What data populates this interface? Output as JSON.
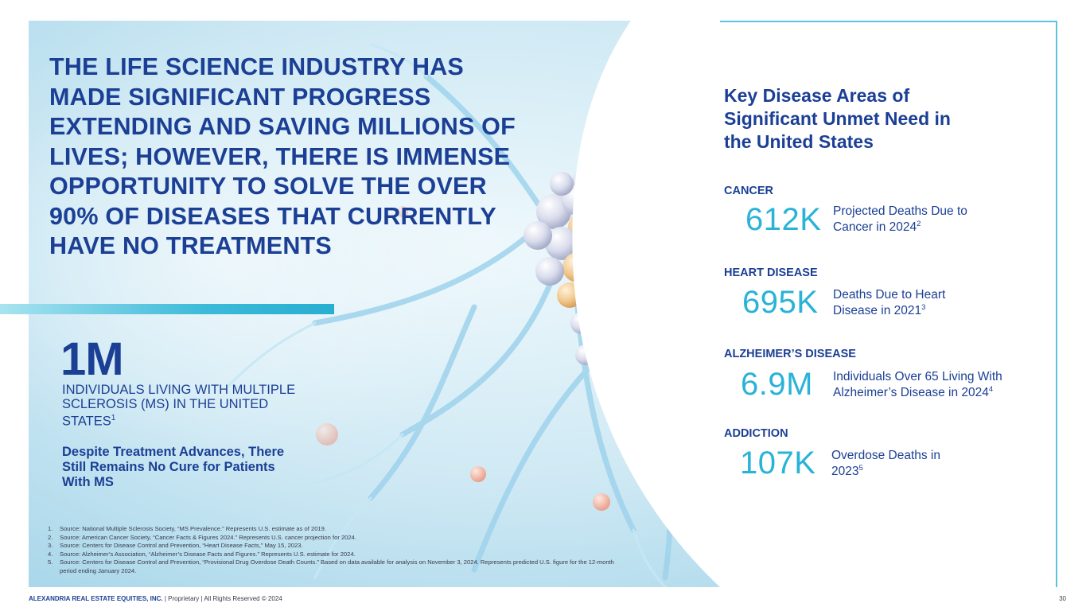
{
  "headline": "THE LIFE SCIENCE INDUSTRY HAS MADE SIGNIFICANT PROGRESS EXTENDING AND SAVING MILLIONS OF LIVES; HOWEVER, THERE IS IMMENSE OPPORTUNITY TO SOLVE THE OVER 90% OF DISEASES THAT CURRENTLY HAVE NO TREATMENTS",
  "ms_stat": {
    "value": "1M",
    "description": "INDIVIDUALS LIVING WITH MULTIPLE SCLEROSIS (MS) IN THE UNITED STATES",
    "footnote_ref": "1",
    "subtext": "Despite Treatment Advances, There Still Remains No Cure for Patients With MS"
  },
  "panel": {
    "title": "Key Disease Areas of Significant Unmet Need in the United States",
    "areas": [
      {
        "label": "CANCER",
        "value": "612K",
        "description": "Projected Deaths Due to Cancer in 2024",
        "footnote_ref": "2"
      },
      {
        "label": "HEART DISEASE",
        "value": "695K",
        "description": "Deaths Due to Heart Disease in 2021",
        "footnote_ref": "3"
      },
      {
        "label": "ALZHEIMER’S DISEASE",
        "value": "6.9M",
        "description": "Individuals Over 65 Living With Alzheimer’s Disease in 2024",
        "footnote_ref": "4"
      },
      {
        "label": "ADDICTION",
        "value": "107K",
        "description": "Overdose Deaths in 2023",
        "footnote_ref": "5"
      }
    ]
  },
  "footnotes": [
    {
      "num": "1.",
      "text": "Source: National Multiple Sclerosis Society, “MS Prevalence.” Represents U.S. estimate as of 2019."
    },
    {
      "num": "2.",
      "text": "Source: American Cancer Society, “Cancer Facts & Figures 2024.” Represents U.S. cancer projection for 2024."
    },
    {
      "num": "3.",
      "text": "Source: Centers for Disease Control and Prevention, “Heart Disease Facts,” May 15, 2023."
    },
    {
      "num": "4.",
      "text": "Source: Alzheimer’s Association, “Alzheimer’s Disease Facts and Figures.” Represents U.S. estimate for 2024."
    },
    {
      "num": "5.",
      "text": "Source: Centers for Disease Control and Prevention, “Provisional Drug Overdose Death Counts.” Based on data available for analysis on November 3, 2024. Represents predicted U.S. figure for the 12-month period ending January 2024."
    }
  ],
  "footer": {
    "company": "ALEXANDRIA REAL ESTATE EQUITIES, INC.",
    "rights": " | Proprietary | All Rights Reserved © 2024",
    "page_number": "30"
  },
  "colors": {
    "navy": "#1b3f95",
    "cyan": "#29b3d6",
    "frame": "#5cc5de"
  }
}
